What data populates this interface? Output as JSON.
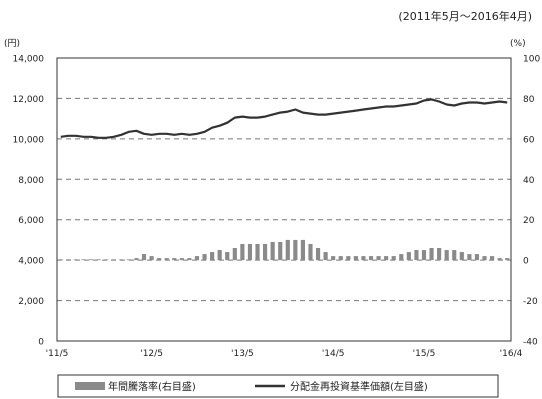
{
  "chart_data": {
    "type": "bar+line",
    "subtitle": "(2011年5月～2016年4月)",
    "y_left": {
      "unit_label": "(円)",
      "ylim": [
        0,
        14000
      ],
      "ticks": [
        "0",
        "2,000",
        "4,000",
        "6,000",
        "8,000",
        "10,000",
        "12,000",
        "14,000"
      ]
    },
    "y_right": {
      "unit_label": "(%)",
      "ylim": [
        -40,
        100
      ],
      "ticks": [
        "-40",
        "-20",
        "0",
        "20",
        "40",
        "60",
        "80",
        "100"
      ]
    },
    "x_ticks": [
      "'11/5",
      "'12/5",
      "'13/5",
      "'14/5",
      "'15/5",
      "'16/4"
    ],
    "grid": "dashed horizontal",
    "legend": {
      "placement": "bottom",
      "items": [
        {
          "label": "年間騰落率(右目盛)",
          "type": "bar"
        },
        {
          "label": "分配金再投資基準価額(左目盛)",
          "type": "line"
        }
      ]
    },
    "x": [
      "2011-05",
      "2011-06",
      "2011-07",
      "2011-08",
      "2011-09",
      "2011-10",
      "2011-11",
      "2011-12",
      "2012-01",
      "2012-02",
      "2012-03",
      "2012-04",
      "2012-05",
      "2012-06",
      "2012-07",
      "2012-08",
      "2012-09",
      "2012-10",
      "2012-11",
      "2012-12",
      "2013-01",
      "2013-02",
      "2013-03",
      "2013-04",
      "2013-05",
      "2013-06",
      "2013-07",
      "2013-08",
      "2013-09",
      "2013-10",
      "2013-11",
      "2013-12",
      "2014-01",
      "2014-02",
      "2014-03",
      "2014-04",
      "2014-05",
      "2014-06",
      "2014-07",
      "2014-08",
      "2014-09",
      "2014-10",
      "2014-11",
      "2014-12",
      "2015-01",
      "2015-02",
      "2015-03",
      "2015-04",
      "2015-05",
      "2015-06",
      "2015-07",
      "2015-08",
      "2015-09",
      "2015-10",
      "2015-11",
      "2015-12",
      "2016-01",
      "2016-02",
      "2016-03",
      "2016-04"
    ],
    "series": [
      {
        "name": "年間騰落率(右目盛)",
        "axis": "right",
        "type": "bar",
        "values": [
          0,
          0,
          0,
          0,
          0,
          0,
          0,
          0,
          0,
          0,
          1,
          3,
          2,
          1,
          1,
          1,
          1,
          1,
          2,
          3,
          4,
          5,
          4,
          6,
          8,
          8,
          8,
          8,
          9,
          9,
          10,
          10,
          10,
          8,
          6,
          4,
          2,
          2,
          2,
          2,
          2,
          2,
          2,
          2,
          2,
          3,
          4,
          5,
          5,
          6,
          6,
          5,
          5,
          4,
          3,
          3,
          2,
          2,
          1,
          1
        ]
      },
      {
        "name": "分配金再投資基準価額(左目盛)",
        "axis": "left",
        "type": "line",
        "values": [
          10100,
          10150,
          10150,
          10100,
          10100,
          10050,
          10050,
          10100,
          10200,
          10350,
          10400,
          10250,
          10200,
          10250,
          10250,
          10200,
          10250,
          10200,
          10250,
          10350,
          10550,
          10650,
          10800,
          11050,
          11100,
          11050,
          11050,
          11100,
          11200,
          11300,
          11350,
          11450,
          11300,
          11250,
          11200,
          11200,
          11250,
          11300,
          11350,
          11400,
          11450,
          11500,
          11550,
          11600,
          11600,
          11650,
          11700,
          11750,
          11900,
          11950,
          11850,
          11700,
          11650,
          11750,
          11800,
          11800,
          11750,
          11800,
          11850,
          11800
        ]
      }
    ],
    "colors": {
      "bar": "#8a8a8a",
      "line": "#333333",
      "grid": "#777777",
      "frame": "#333333"
    }
  }
}
